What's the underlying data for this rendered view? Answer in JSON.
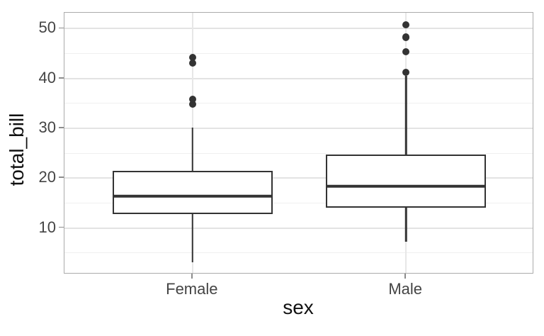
{
  "figure": {
    "background": "#ffffff"
  },
  "chart_data": {
    "type": "boxplot",
    "title": "",
    "xlabel": "sex",
    "ylabel": "total_bill",
    "categories": [
      "Female",
      "Male"
    ],
    "yticks": [
      10,
      20,
      30,
      40,
      50
    ],
    "yticks_minor": [
      5,
      15,
      25,
      35,
      45
    ],
    "ylim": [
      0.68,
      53.2
    ],
    "grid": "horizontal major+minor, vertical at categories",
    "legend": "none",
    "series": [
      {
        "name": "Female",
        "whisker_low": 3.07,
        "q1": 12.75,
        "median": 16.4,
        "q3": 21.52,
        "whisker_high": 30.14,
        "outliers": [
          34.83,
          35.83,
          43.11,
          44.3
        ]
      },
      {
        "name": "Male",
        "whisker_low": 7.25,
        "q1": 14.0,
        "median": 18.35,
        "q3": 24.71,
        "whisker_high": 40.55,
        "outliers": [
          41.19,
          45.35,
          48.27,
          48.33,
          50.81
        ]
      }
    ],
    "colors": {
      "box_stroke": "#333333",
      "box_fill": "#ffffff",
      "outlier": "#333333",
      "grid_major": "#e3e3e3",
      "grid_minor": "#f0f0f0",
      "panel_border": "#ababab",
      "tick_mark": "#8c8c8c",
      "tick_label": "#444444",
      "axis_title": "#111111"
    }
  }
}
